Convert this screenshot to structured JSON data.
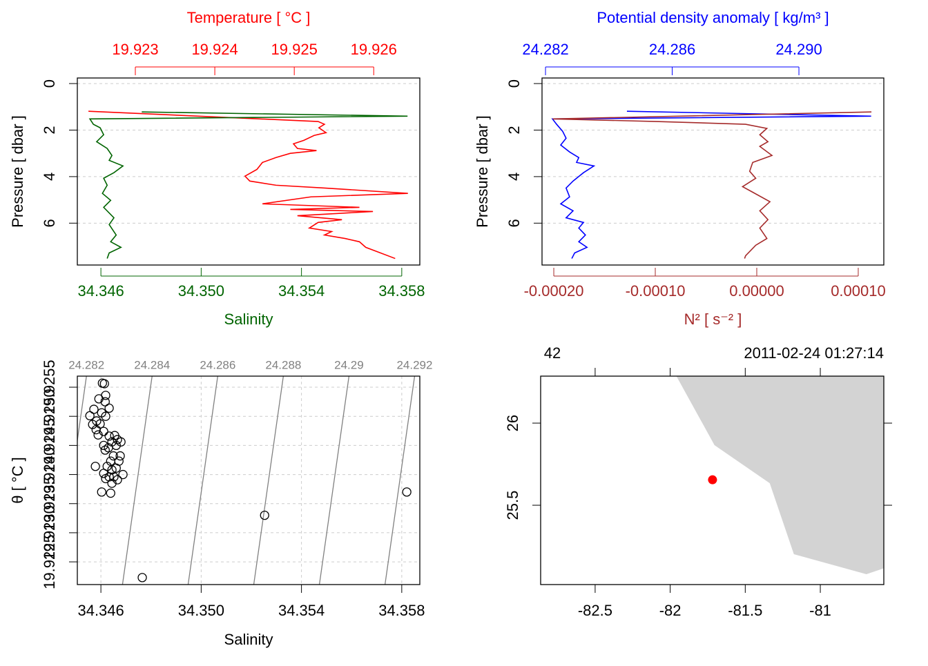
{
  "chart_data": [
    {
      "type": "profile",
      "ylabel": "Pressure [ dbar ]",
      "ylim": [
        -0.24,
        7.8
      ],
      "y_reversed": true,
      "yticks": [
        0,
        2,
        4,
        6
      ],
      "grid": true,
      "xlabel": "Salinity",
      "xlim": [
        34.34506,
        34.35872
      ],
      "xticks": [
        34.346,
        {
          "value": 34.35,
          "label": "34.350"
        },
        34.354,
        34.358
      ],
      "x2label": "Temperature [ °C ]",
      "x2lim": [
        19.92227,
        19.92658
      ],
      "x2ticks": [
        19.923,
        19.924,
        19.925,
        19.926
      ],
      "series": [
        {
          "color": "#ff0000",
          "axis": "x2",
          "x": [
            19.92241,
            19.9253,
            19.92538,
            19.92531,
            19.9254,
            19.92525,
            19.92512,
            19.92499,
            19.92504,
            19.92528,
            19.92495,
            19.92477,
            19.9246,
            19.92453,
            19.92438,
            19.92444,
            19.92477,
            19.92538,
            19.92643,
            19.92521,
            19.9246,
            19.92582,
            19.92495,
            19.92599,
            19.92504,
            19.9256,
            19.9253,
            19.92519,
            19.92547,
            19.92538,
            19.92564,
            19.92582,
            19.9259,
            19.92604,
            19.92627
          ],
          "y": [
            1.19,
            1.63,
            1.75,
            1.9,
            2.11,
            2.23,
            2.44,
            2.59,
            2.79,
            2.88,
            3.0,
            3.18,
            3.39,
            3.69,
            3.98,
            4.19,
            4.37,
            4.49,
            4.72,
            4.87,
            5.17,
            5.32,
            5.41,
            5.5,
            5.68,
            5.85,
            5.97,
            6.21,
            6.36,
            6.51,
            6.66,
            6.8,
            7.04,
            7.22,
            7.52
          ]
        },
        {
          "color": "#006400",
          "axis": "x",
          "x": [
            34.34763,
            34.35823,
            34.34556,
            34.3457,
            34.34597,
            34.34611,
            34.34583,
            34.34625,
            34.34644,
            34.34633,
            34.34688,
            34.34652,
            34.34611,
            34.34625,
            34.34606,
            34.34639,
            34.34611,
            34.34652,
            34.34633,
            34.34661,
            34.34639,
            34.3468,
            34.34633,
            34.34625
          ],
          "y": [
            1.22,
            1.4,
            1.52,
            1.75,
            1.9,
            2.2,
            2.5,
            2.79,
            3.09,
            3.3,
            3.54,
            3.83,
            4.07,
            4.37,
            4.72,
            5.02,
            5.32,
            5.77,
            6.06,
            6.51,
            6.8,
            7.04,
            7.28,
            7.52
          ]
        }
      ]
    },
    {
      "type": "profile",
      "ylabel": "Pressure [ dbar ]",
      "ylim": [
        -0.24,
        7.8
      ],
      "y_reversed": true,
      "yticks": [
        0,
        2,
        4,
        6
      ],
      "grid": true,
      "xlabel": "N² [ s⁻² ]",
      "xlim": [
        -0.0002116,
        0.0001252
      ],
      "xticks": [
        {
          "value": -0.0002,
          "label": "-0.00020"
        },
        {
          "value": -0.0001,
          "label": "-0.00010"
        },
        {
          "value": 0,
          "label": "0.00000"
        },
        {
          "value": 0.0001,
          "label": "0.00010"
        }
      ],
      "x2label": "Potential density anomaly [ kg/m³ ]",
      "x2lim": [
        24.28189,
        24.29268
      ],
      "x2ticks": [
        24.282,
        24.286,
        {
          "value": 24.29,
          "label": "24.290"
        }
      ],
      "series": [
        {
          "color": "#0000ff",
          "axis": "x2",
          "x": [
            24.28457,
            24.29228,
            24.28222,
            24.28235,
            24.28254,
            24.28265,
            24.28248,
            24.28276,
            24.28305,
            24.28298,
            24.28353,
            24.2832,
            24.28287,
            24.28265,
            24.28276,
            24.28248,
            24.28287,
            24.28265,
            24.2832,
            24.28305,
            24.28326,
            24.28305,
            24.28331,
            24.28292,
            24.28283
          ],
          "y": [
            1.19,
            1.4,
            1.52,
            1.75,
            2.05,
            2.35,
            2.64,
            2.94,
            3.18,
            3.39,
            3.54,
            3.83,
            4.19,
            4.49,
            4.87,
            5.17,
            5.47,
            5.77,
            5.97,
            6.21,
            6.51,
            6.8,
            7.04,
            7.28,
            7.52
          ]
        },
        {
          "color": "#a52a2a",
          "axis": "x",
          "x": [
            0.000113,
            -0.000201,
            -9.9e-05,
            -1.1e-05,
            1e-05,
            3e-06,
            1.1e-05,
            3e-06,
            1.5e-05,
            -4e-06,
            -7e-06,
            -1e-06,
            -1.4e-05,
            -4e-06,
            1.3e-05,
            3e-06,
            1.1e-05,
            3e-06,
            1e-05,
            -1e-06,
            -1.1e-05,
            -1.2e-05
          ],
          "y": [
            1.22,
            1.52,
            1.63,
            1.75,
            1.93,
            2.2,
            2.5,
            2.7,
            3.09,
            3.39,
            3.77,
            4.07,
            4.43,
            4.67,
            5.08,
            5.47,
            5.85,
            6.21,
            6.66,
            6.95,
            7.4,
            7.52
          ]
        }
      ]
    },
    {
      "type": "scatter",
      "xlabel": "Salinity",
      "ylabel": "θ [ °C ]",
      "grid": true,
      "xlim": [
        34.34506,
        34.35872
      ],
      "xticks": [
        34.346,
        {
          "value": 34.35,
          "label": "34.350"
        },
        34.354,
        34.358
      ],
      "ylim": [
        19.92211,
        19.92569
      ],
      "yticks": [
        19.9255,
        {
          "value": 19.925,
          "label": "19.9250"
        },
        19.9245,
        {
          "value": 19.924,
          "label": "19.9240"
        },
        19.9235,
        {
          "value": 19.923,
          "label": "19.9230"
        },
        19.9225
      ],
      "isopycnals": [
        24.282,
        24.284,
        24.286,
        24.288,
        24.29,
        24.292
      ],
      "isopycnal_color": "#808080",
      "x": [
        34.34606,
        34.34614,
        34.34592,
        34.34619,
        34.34617,
        34.34556,
        34.34572,
        34.34603,
        34.34633,
        34.34619,
        34.34583,
        34.34567,
        34.34597,
        34.34581,
        34.34589,
        34.34611,
        34.34633,
        34.34655,
        34.34666,
        34.34644,
        34.34611,
        34.3468,
        34.3463,
        34.34661,
        34.34617,
        34.3465,
        34.34677,
        34.34639,
        34.34672,
        34.34578,
        34.34625,
        34.34644,
        34.34661,
        34.34611,
        34.34633,
        34.34688,
        34.34652,
        34.34619,
        34.34666,
        34.34644,
        34.34603,
        34.34639,
        34.34765,
        34.35253,
        34.3582
      ],
      "y": [
        19.92557,
        19.92556,
        19.9253,
        19.92536,
        19.92525,
        19.92501,
        19.92512,
        19.92506,
        19.92514,
        19.925,
        19.92492,
        19.92486,
        19.92487,
        19.92477,
        19.92468,
        19.92474,
        19.92466,
        19.92467,
        19.9246,
        19.92456,
        19.9245,
        19.92456,
        19.92446,
        19.9245,
        19.92442,
        19.92432,
        19.92432,
        19.92423,
        19.92423,
        19.92414,
        19.92414,
        19.92408,
        19.92411,
        19.92402,
        19.92396,
        19.924,
        19.92396,
        19.92393,
        19.92391,
        19.92385,
        19.9237,
        19.92368,
        19.92223,
        19.9233,
        19.9237
      ]
    },
    {
      "type": "map",
      "station": "42",
      "time": "2011-02-24 01:27:14",
      "xlim": [
        -82.863,
        -80.577
      ],
      "xticks": [
        -82.5,
        -82,
        -81.5,
        -81
      ],
      "ylim": [
        25.017,
        26.286
      ],
      "yticks": [
        25.5,
        26
      ],
      "land_color": "#d3d3d3",
      "coastline": {
        "lon": [
          -81.967,
          -81.705,
          -81.337,
          -81.176,
          -80.693,
          -80.5,
          -80.5
        ],
        "lat": [
          26.3,
          25.866,
          25.634,
          25.202,
          25.08,
          25.14,
          26.3
        ]
      },
      "point": {
        "lon": -81.718,
        "lat": 25.655,
        "color": "#ff0000"
      }
    }
  ]
}
